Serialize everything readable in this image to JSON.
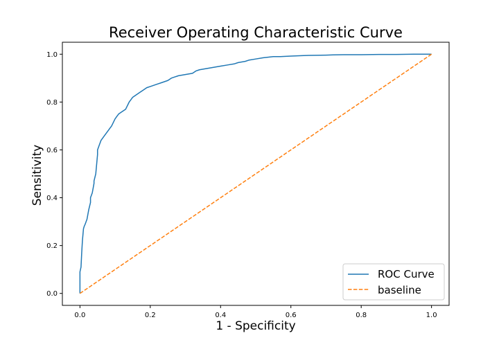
{
  "chart_data": {
    "type": "line",
    "title": "Receiver Operating Characteristic Curve",
    "xlabel": "1 - Specificity",
    "ylabel": "Sensitivity",
    "xlim": [
      -0.05,
      1.05
    ],
    "ylim": [
      -0.05,
      1.05
    ],
    "xticks": [
      "0.0",
      "0.2",
      "0.4",
      "0.6",
      "0.8",
      "1.0"
    ],
    "yticks": [
      "0.0",
      "0.2",
      "0.4",
      "0.6",
      "0.8",
      "1.0"
    ],
    "grid": false,
    "legend_position": "bottom-right",
    "series": [
      {
        "name": "ROC Curve",
        "color": "#1f77b4",
        "style": "solid",
        "x": [
          0.0,
          0.0,
          0.003,
          0.005,
          0.007,
          0.01,
          0.012,
          0.015,
          0.02,
          0.025,
          0.03,
          0.03,
          0.035,
          0.04,
          0.04,
          0.045,
          0.05,
          0.05,
          0.055,
          0.06,
          0.065,
          0.07,
          0.08,
          0.085,
          0.09,
          0.1,
          0.105,
          0.11,
          0.11,
          0.12,
          0.13,
          0.14,
          0.145,
          0.15,
          0.16,
          0.17,
          0.18,
          0.19,
          0.2,
          0.21,
          0.22,
          0.23,
          0.25,
          0.26,
          0.27,
          0.28,
          0.3,
          0.32,
          0.33,
          0.34,
          0.36,
          0.38,
          0.4,
          0.42,
          0.44,
          0.45,
          0.47,
          0.48,
          0.5,
          0.52,
          0.55,
          0.57,
          0.6,
          0.63,
          0.65,
          0.7,
          0.72,
          0.75,
          0.8,
          0.85,
          0.9,
          0.95,
          1.0
        ],
        "y": [
          0.0,
          0.09,
          0.11,
          0.17,
          0.22,
          0.27,
          0.28,
          0.29,
          0.31,
          0.35,
          0.38,
          0.4,
          0.42,
          0.46,
          0.47,
          0.5,
          0.58,
          0.6,
          0.62,
          0.64,
          0.65,
          0.66,
          0.68,
          0.69,
          0.7,
          0.73,
          0.74,
          0.75,
          0.75,
          0.76,
          0.77,
          0.8,
          0.81,
          0.82,
          0.83,
          0.84,
          0.85,
          0.86,
          0.865,
          0.87,
          0.875,
          0.88,
          0.89,
          0.9,
          0.905,
          0.91,
          0.915,
          0.92,
          0.93,
          0.935,
          0.94,
          0.945,
          0.95,
          0.955,
          0.96,
          0.965,
          0.97,
          0.975,
          0.98,
          0.985,
          0.99,
          0.99,
          0.992,
          0.994,
          0.995,
          0.996,
          0.997,
          0.998,
          0.998,
          0.999,
          0.999,
          1.0,
          1.0
        ]
      },
      {
        "name": "baseline",
        "color": "#ff7f0e",
        "style": "dashed",
        "x": [
          0.0,
          1.0
        ],
        "y": [
          0.0,
          1.0
        ]
      }
    ]
  }
}
